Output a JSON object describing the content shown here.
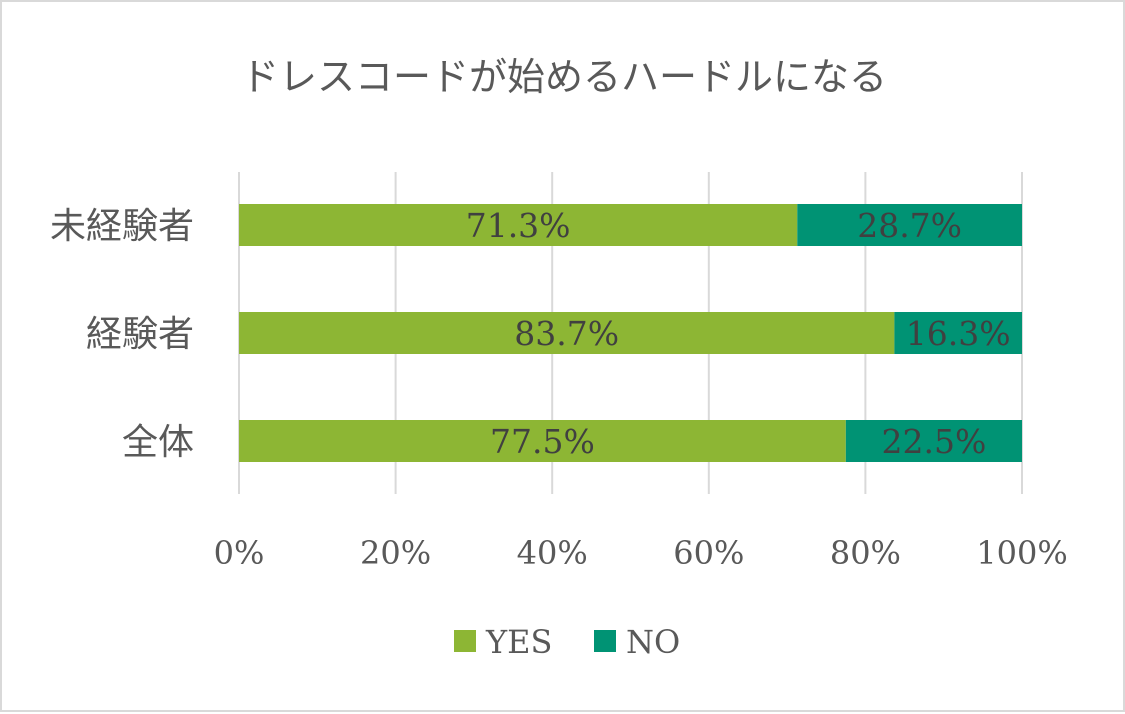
{
  "chart_data": {
    "type": "bar",
    "orientation": "horizontal",
    "stacked": true,
    "title": "ドレスコードが始めるハードルになる",
    "categories": [
      "未経験者",
      "経験者",
      "全体"
    ],
    "series": [
      {
        "name": "YES",
        "color": "#8db634",
        "values": [
          71.3,
          83.7,
          77.5
        ]
      },
      {
        "name": "NO",
        "color": "#009374",
        "values": [
          28.7,
          16.3,
          22.5
        ]
      }
    ],
    "data_labels": {
      "YES": [
        "71.3%",
        "83.7%",
        "77.5%"
      ],
      "NO": [
        "28.7%",
        "16.3%",
        "22.5%"
      ]
    },
    "x_ticks": [
      0,
      20,
      40,
      60,
      80,
      100
    ],
    "x_tick_labels": [
      "0%",
      "20%",
      "40%",
      "60%",
      "80%",
      "100%"
    ],
    "xlim": [
      0,
      100
    ],
    "xlabel": "",
    "ylabel": "",
    "grid": true,
    "legend_position": "bottom"
  }
}
